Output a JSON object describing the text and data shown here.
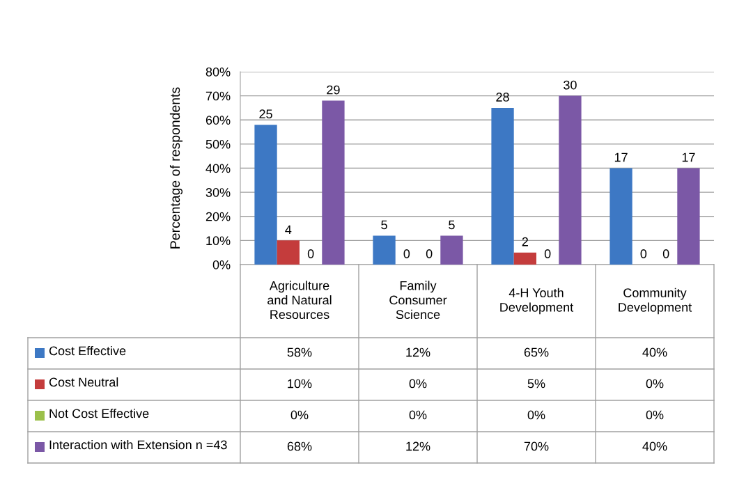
{
  "chart_data": {
    "type": "bar",
    "ylabel": "Percentage of respondents",
    "categories": [
      "Agriculture and Natural Resources",
      "Family Consumer Science",
      "4-H Youth Development",
      "Community Development"
    ],
    "series": [
      {
        "name": "Cost Effective",
        "color": "#3D78C4",
        "values": [
          58,
          12,
          65,
          40
        ],
        "value_labels": [
          "58%",
          "12%",
          "65%",
          "40%"
        ]
      },
      {
        "name": "Cost Neutral",
        "color": "#C43C3C",
        "values": [
          10,
          0,
          5,
          0
        ],
        "value_labels": [
          "10%",
          "0%",
          "5%",
          "0%"
        ]
      },
      {
        "name": "Not Cost Effective",
        "color": "#9BC04A",
        "values": [
          0,
          0,
          0,
          0
        ],
        "value_labels": [
          "0%",
          "0%",
          "0%",
          "0%"
        ]
      },
      {
        "name": "Interaction with Extension n =43",
        "color": "#7B58A6",
        "values": [
          68,
          12,
          70,
          40
        ],
        "value_labels": [
          "68%",
          "12%",
          "70%",
          "40%"
        ]
      }
    ],
    "annotations": [
      "25",
      "4",
      "0",
      "29",
      "5",
      "0",
      "0",
      "5",
      "28",
      "2",
      "0",
      "30",
      "17",
      "0",
      "0",
      "17"
    ],
    "ylim": [
      0,
      80
    ],
    "yticks": [
      {
        "value": 0,
        "label": "0%"
      },
      {
        "value": 10,
        "label": "10%"
      },
      {
        "value": 20,
        "label": "20%"
      },
      {
        "value": 30,
        "label": "30%"
      },
      {
        "value": 40,
        "label": "40%"
      },
      {
        "value": 50,
        "label": "50%"
      },
      {
        "value": 60,
        "label": "60%"
      },
      {
        "value": 70,
        "label": "70%"
      },
      {
        "value": 80,
        "label": "80%"
      }
    ],
    "grid": "y",
    "legend": "bottom left"
  }
}
